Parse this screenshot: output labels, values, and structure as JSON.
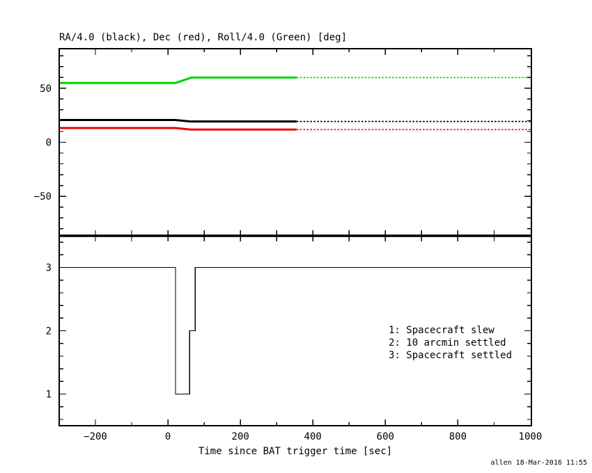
{
  "xlabel": "Time since BAT trigger time [sec]",
  "footer": "allen 18-Mar-2016 11:55",
  "chart_data": [
    {
      "type": "line",
      "panel": "attitude",
      "title": "RA/4.0 (black), Dec (red), Roll/4.0 (Green) [deg]",
      "xlim": [
        -300,
        1003
      ],
      "ylim": [
        -86.5,
        86.5
      ],
      "xticks": {
        "major": 200,
        "minor": 100,
        "labeled": [
          -200,
          0,
          200,
          400,
          600,
          800,
          1000
        ]
      },
      "x_tick_labels": [
        "−200",
        "0",
        "200",
        "400",
        "600",
        "800",
        "1000"
      ],
      "yticks": {
        "major": 50,
        "minor": 10,
        "labeled": [
          50,
          0,
          -50
        ]
      },
      "y_tick_labels": [
        "50",
        "0",
        "−50"
      ],
      "style_note": "solid until style_change_x, dotted after",
      "series": [
        {
          "name": "Roll/4.0 (Green)",
          "color": "#00d400",
          "width": 3,
          "style_change_x": 355,
          "points": [
            [
              -300,
              54.8
            ],
            [
              21,
              54.8
            ],
            [
              65,
              59.8
            ],
            [
              1003,
              59.8
            ]
          ]
        },
        {
          "name": "RA/4.0 (black)",
          "color": "#000000",
          "width": 3,
          "style_change_x": 355,
          "points": [
            [
              -300,
              20.6
            ],
            [
              20,
              20.6
            ],
            [
              62,
              19.2
            ],
            [
              1003,
              19.2
            ]
          ]
        },
        {
          "name": "Dec (red)",
          "color": "#ee0000",
          "width": 3,
          "style_change_x": 355,
          "points": [
            [
              -300,
              13.2
            ],
            [
              20,
              13.2
            ],
            [
              62,
              11.7
            ],
            [
              1003,
              11.7
            ]
          ]
        }
      ]
    },
    {
      "type": "step",
      "panel": "settled-flag",
      "xlim": [
        -300,
        1003
      ],
      "ylim": [
        0.5,
        3.5
      ],
      "xticks": {
        "major": 200,
        "minor": 100,
        "labeled": []
      },
      "yticks": {
        "major": 1,
        "minor": 0.2,
        "labeled": [
          3,
          2,
          1
        ]
      },
      "y_tick_labels": [
        "3",
        "2",
        "1"
      ],
      "series": [
        {
          "name": "spacecraft settled state",
          "color": "#000000",
          "width": 1.3,
          "points": [
            [
              -300,
              3
            ],
            [
              21,
              3
            ],
            [
              21,
              1
            ],
            [
              60,
              1
            ],
            [
              60,
              2
            ],
            [
              75,
              2
            ],
            [
              75,
              3
            ],
            [
              1003,
              3
            ]
          ]
        }
      ],
      "legend": {
        "lines": [
          "1: Spacecraft slew",
          "2: 10 arcmin settled",
          "3: Spacecraft settled"
        ]
      }
    }
  ]
}
